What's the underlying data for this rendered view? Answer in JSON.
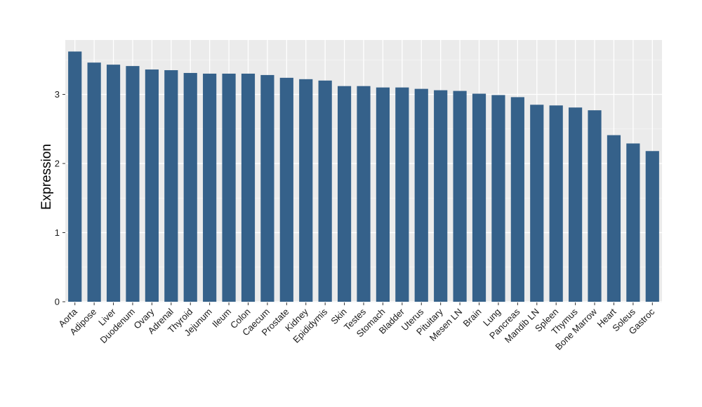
{
  "chart_data": {
    "type": "bar",
    "title": "",
    "xlabel": "",
    "ylabel": "Expression",
    "ylim": [
      0,
      3.7
    ],
    "yticks": [
      0,
      1,
      2,
      3
    ],
    "grid": true,
    "colors": {
      "bar": "#35618a",
      "panel": "#ebebeb",
      "grid": "#ffffff"
    },
    "categories": [
      "Aorta",
      "Adipose",
      "Liver",
      "Duodenum",
      "Ovary",
      "Adrenal",
      "Thyroid",
      "Jejunum",
      "Ileum",
      "Colon",
      "Caecum",
      "Prostate",
      "Kidney",
      "Epididymis",
      "Skin",
      "Testes",
      "Stomach",
      "Bladder",
      "Uterus",
      "Pituitary",
      "Mesen LN",
      "Brain",
      "Lung",
      "Pancreas",
      "Mandib LN",
      "Spleen",
      "Thymus",
      "Bone Marrow",
      "Heart",
      "Soleus",
      "Gastroc"
    ],
    "values": [
      3.62,
      3.46,
      3.43,
      3.41,
      3.36,
      3.35,
      3.31,
      3.3,
      3.3,
      3.3,
      3.28,
      3.24,
      3.22,
      3.2,
      3.12,
      3.12,
      3.1,
      3.1,
      3.08,
      3.06,
      3.05,
      3.01,
      2.99,
      2.96,
      2.85,
      2.84,
      2.81,
      2.77,
      2.41,
      2.29,
      2.18
    ]
  }
}
